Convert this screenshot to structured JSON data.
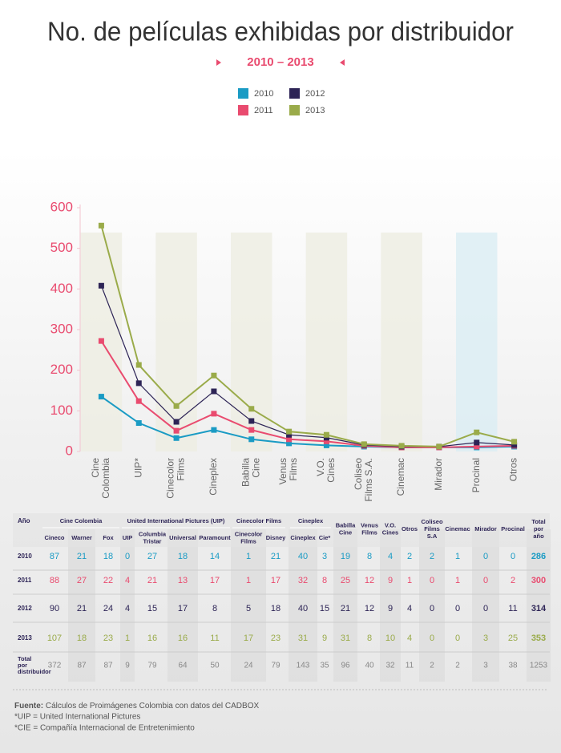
{
  "chart_data": {
    "type": "line",
    "title": "No. de películas exhibidas por distribuidor",
    "subtitle": "2010 – 2013",
    "categories": [
      "Cine Colombia",
      "UIP*",
      "Cinecolor Films",
      "Cineplex",
      "Babilla Cine",
      "Venus Films",
      "V.O. Cines",
      "Coliseo Films S.A.",
      "Cinemac",
      "Mirador",
      "Procinal",
      "Otros"
    ],
    "series": [
      {
        "name": "2010",
        "color": "#1a9bc4",
        "values": [
          135,
          70,
          33,
          53,
          30,
          20,
          15,
          12,
          10,
          10,
          10,
          12
        ]
      },
      {
        "name": "2011",
        "color": "#e94b6f",
        "values": [
          272,
          124,
          51,
          93,
          53,
          30,
          25,
          14,
          10,
          10,
          12,
          14
        ]
      },
      {
        "name": "2012",
        "color": "#2d2456",
        "values": [
          408,
          168,
          73,
          148,
          75,
          41,
          34,
          16,
          12,
          12,
          22,
          16
        ]
      },
      {
        "name": "2013",
        "color": "#9aab4a",
        "values": [
          556,
          213,
          112,
          187,
          105,
          49,
          41,
          18,
          14,
          12,
          47,
          24
        ]
      }
    ],
    "ylim": [
      0,
      600
    ],
    "yticks": [
      0,
      100,
      200,
      300,
      400,
      500,
      600
    ]
  },
  "table": {
    "corner": "Año",
    "groups": [
      {
        "label": "Cine Colombia",
        "columns": [
          "Cineco",
          "Warner",
          "Fox"
        ]
      },
      {
        "label": "United International Pictures (UIP)",
        "columns": [
          "UIP",
          "Columbia Tristar",
          "Universal",
          "Paramount"
        ]
      },
      {
        "label": "Cinecolor Films",
        "columns": [
          "Cinecolor Films",
          "Disney"
        ]
      },
      {
        "label": "Cineplex",
        "columns": [
          "Cineplex",
          "Cie*"
        ]
      },
      {
        "label": "Babilla Cine"
      },
      {
        "label": "Venus Films"
      },
      {
        "label": "V.O. Cines"
      },
      {
        "label": "Otros"
      },
      {
        "label": "Coliseo Films S.A"
      },
      {
        "label": "Cinemac"
      },
      {
        "label": "Mirador"
      },
      {
        "label": "Procinal"
      },
      {
        "label": "Total por año"
      }
    ],
    "rows": [
      {
        "year": "2010",
        "cells": [
          87,
          21,
          18,
          0,
          27,
          18,
          14,
          1,
          21,
          40,
          3,
          19,
          8,
          4,
          2,
          2,
          1,
          0,
          0,
          286
        ]
      },
      {
        "year": "2011",
        "cells": [
          88,
          27,
          22,
          4,
          21,
          13,
          17,
          1,
          17,
          32,
          8,
          25,
          12,
          9,
          1,
          0,
          1,
          0,
          2,
          300
        ]
      },
      {
        "year": "2012",
        "cells": [
          90,
          21,
          24,
          4,
          15,
          17,
          8,
          5,
          18,
          40,
          15,
          21,
          12,
          9,
          4,
          0,
          0,
          0,
          11,
          314
        ]
      },
      {
        "year": "2013",
        "cells": [
          107,
          18,
          23,
          1,
          16,
          16,
          11,
          17,
          23,
          31,
          9,
          31,
          8,
          10,
          4,
          0,
          0,
          3,
          25,
          353
        ]
      }
    ],
    "total_row": {
      "label": "Total por distribuidor",
      "cells": [
        372,
        87,
        87,
        9,
        79,
        64,
        50,
        24,
        79,
        143,
        35,
        96,
        40,
        32,
        11,
        2,
        2,
        3,
        38,
        1253
      ]
    }
  },
  "footnotes": {
    "source_label": "Fuente:",
    "source": "Cálculos de Proimágenes Colombia con datos del CADBOX",
    "notes": [
      "*UIP = United International Pictures",
      "*CIE = Compañía Internacional de Entretenimiento"
    ]
  }
}
